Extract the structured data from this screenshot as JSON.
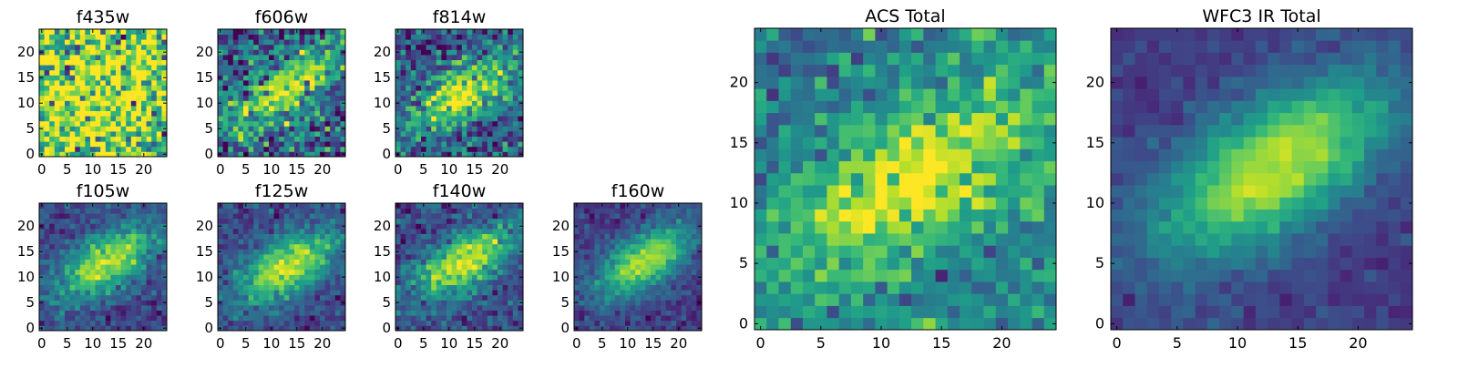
{
  "colormap": "viridis",
  "colors": [
    "#440154",
    "#482878",
    "#3e4a89",
    "#31688e",
    "#26828e",
    "#1f9e89",
    "#35b779",
    "#6ece58",
    "#b5de2b",
    "#fde725"
  ],
  "chart_data": [
    {
      "type": "heatmap",
      "title": "f435w",
      "grid_size": 25,
      "xlim": [
        -0.5,
        24.5
      ],
      "ylim": [
        -0.5,
        24.5
      ],
      "xticks": [
        0,
        5,
        10,
        15,
        20
      ],
      "yticks": [
        0,
        5,
        10,
        15,
        20
      ],
      "xtick_labels": [
        "0",
        "5",
        "10",
        "15",
        "20"
      ],
      "ytick_labels": [
        "0",
        "5",
        "10",
        "15",
        "20"
      ],
      "structure": {
        "center": [
          12,
          12
        ],
        "angle_deg": 30,
        "sigma_major": 14,
        "sigma_minor": 8,
        "peak": 0.25,
        "background": 0.68,
        "noise": 0.28,
        "seed": 11
      },
      "grid": false
    },
    {
      "type": "heatmap",
      "title": "f606w",
      "grid_size": 25,
      "xlim": [
        -0.5,
        24.5
      ],
      "ylim": [
        -0.5,
        24.5
      ],
      "xticks": [
        0,
        5,
        10,
        15,
        20
      ],
      "yticks": [
        0,
        5,
        10,
        15,
        20
      ],
      "xtick_labels": [
        "0",
        "5",
        "10",
        "15",
        "20"
      ],
      "ytick_labels": [
        "0",
        "5",
        "10",
        "15",
        "20"
      ],
      "structure": {
        "center": [
          13,
          13
        ],
        "angle_deg": 35,
        "sigma_major": 9,
        "sigma_minor": 3.2,
        "peak": 0.6,
        "background": 0.3,
        "noise": 0.2,
        "seed": 23
      },
      "grid": false
    },
    {
      "type": "heatmap",
      "title": "f814w",
      "grid_size": 25,
      "xlim": [
        -0.5,
        24.5
      ],
      "ylim": [
        -0.5,
        24.5
      ],
      "xticks": [
        0,
        5,
        10,
        15,
        20
      ],
      "yticks": [
        0,
        5,
        10,
        15,
        20
      ],
      "xtick_labels": [
        "0",
        "5",
        "10",
        "15",
        "20"
      ],
      "ytick_labels": [
        "0",
        "5",
        "10",
        "15",
        "20"
      ],
      "structure": {
        "center": [
          13,
          12
        ],
        "angle_deg": 33,
        "sigma_major": 8.5,
        "sigma_minor": 3.4,
        "peak": 0.65,
        "background": 0.28,
        "noise": 0.17,
        "seed": 37
      },
      "grid": false
    },
    {
      "type": "heatmap",
      "title": "f105w",
      "grid_size": 25,
      "xlim": [
        -0.5,
        24.5
      ],
      "ylim": [
        -0.5,
        24.5
      ],
      "xticks": [
        0,
        5,
        10,
        15,
        20
      ],
      "yticks": [
        0,
        5,
        10,
        15,
        20
      ],
      "xtick_labels": [
        "0",
        "5",
        "10",
        "15",
        "20"
      ],
      "ytick_labels": [
        "0",
        "5",
        "10",
        "15",
        "20"
      ],
      "structure": {
        "center": [
          13,
          13
        ],
        "angle_deg": 33,
        "sigma_major": 7.5,
        "sigma_minor": 3.4,
        "peak": 0.7,
        "background": 0.22,
        "noise": 0.09,
        "seed": 41
      },
      "grid": false
    },
    {
      "type": "heatmap",
      "title": "f125w",
      "grid_size": 25,
      "xlim": [
        -0.5,
        24.5
      ],
      "ylim": [
        -0.5,
        24.5
      ],
      "xticks": [
        0,
        5,
        10,
        15,
        20
      ],
      "yticks": [
        0,
        5,
        10,
        15,
        20
      ],
      "xtick_labels": [
        "0",
        "5",
        "10",
        "15",
        "20"
      ],
      "ytick_labels": [
        "0",
        "5",
        "10",
        "15",
        "20"
      ],
      "structure": {
        "center": [
          13,
          12
        ],
        "angle_deg": 33,
        "sigma_major": 7.5,
        "sigma_minor": 3.6,
        "peak": 0.7,
        "background": 0.22,
        "noise": 0.09,
        "seed": 53
      },
      "grid": false
    },
    {
      "type": "heatmap",
      "title": "f140w",
      "grid_size": 25,
      "xlim": [
        -0.5,
        24.5
      ],
      "ylim": [
        -0.5,
        24.5
      ],
      "xticks": [
        0,
        5,
        10,
        15,
        20
      ],
      "yticks": [
        0,
        5,
        10,
        15,
        20
      ],
      "xtick_labels": [
        "0",
        "5",
        "10",
        "15",
        "20"
      ],
      "ytick_labels": [
        "0",
        "5",
        "10",
        "15",
        "20"
      ],
      "structure": {
        "center": [
          13,
          13
        ],
        "angle_deg": 33,
        "sigma_major": 7.5,
        "sigma_minor": 3.4,
        "peak": 0.7,
        "background": 0.22,
        "noise": 0.1,
        "seed": 67
      },
      "grid": false
    },
    {
      "type": "heatmap",
      "title": "f160w",
      "grid_size": 25,
      "xlim": [
        -0.5,
        24.5
      ],
      "ylim": [
        -0.5,
        24.5
      ],
      "xticks": [
        0,
        5,
        10,
        15,
        20
      ],
      "yticks": [
        0,
        5,
        10,
        15,
        20
      ],
      "xtick_labels": [
        "0",
        "5",
        "10",
        "15",
        "20"
      ],
      "ytick_labels": [
        "0",
        "5",
        "10",
        "15",
        "20"
      ],
      "structure": {
        "center": [
          13,
          13
        ],
        "angle_deg": 33,
        "sigma_major": 7.5,
        "sigma_minor": 3.4,
        "peak": 0.72,
        "background": 0.18,
        "noise": 0.07,
        "seed": 79
      },
      "grid": false
    },
    {
      "type": "heatmap",
      "title": "ACS Total",
      "grid_size": 25,
      "xlim": [
        -0.5,
        24.5
      ],
      "ylim": [
        -0.5,
        24.5
      ],
      "xticks": [
        0,
        5,
        10,
        15,
        20
      ],
      "yticks": [
        0,
        5,
        10,
        15,
        20
      ],
      "xtick_labels": [
        "0",
        "5",
        "10",
        "15",
        "20"
      ],
      "ytick_labels": [
        "0",
        "5",
        "10",
        "15",
        "20"
      ],
      "structure": {
        "center": [
          13,
          12
        ],
        "angle_deg": 33,
        "sigma_major": 9,
        "sigma_minor": 3.8,
        "peak": 0.55,
        "background": 0.42,
        "noise": 0.13,
        "seed": 97
      },
      "grid": false
    },
    {
      "type": "heatmap",
      "title": "WFC3 IR Total",
      "grid_size": 25,
      "xlim": [
        -0.5,
        24.5
      ],
      "ylim": [
        -0.5,
        24.5
      ],
      "xticks": [
        0,
        5,
        10,
        15,
        20
      ],
      "yticks": [
        0,
        5,
        10,
        15,
        20
      ],
      "xtick_labels": [
        "0",
        "5",
        "10",
        "15",
        "20"
      ],
      "ytick_labels": [
        "0",
        "5",
        "10",
        "15",
        "20"
      ],
      "structure": {
        "center": [
          13,
          13
        ],
        "angle_deg": 33,
        "sigma_major": 7.8,
        "sigma_minor": 3.6,
        "peak": 0.75,
        "background": 0.18,
        "noise": 0.045,
        "seed": 113
      },
      "grid": false
    }
  ]
}
